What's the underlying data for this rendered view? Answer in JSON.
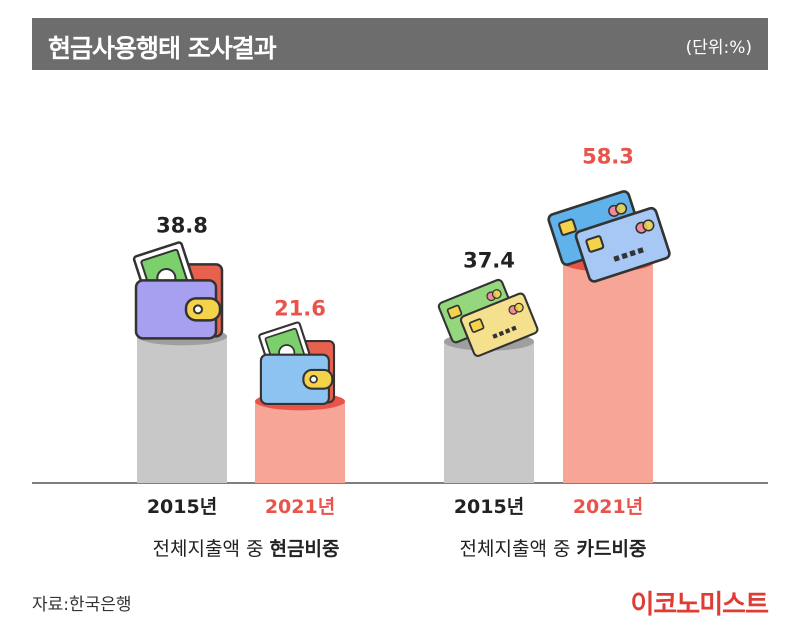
{
  "header": {
    "title": "현금사용행태 조사결과",
    "unit": "(단위:%)"
  },
  "chart_data": {
    "type": "bar",
    "groups": [
      {
        "label_prefix": "전체지출액 중 ",
        "label_bold": "현금비중",
        "categories": [
          "2015년",
          "2021년"
        ],
        "values": [
          38.8,
          21.6
        ],
        "value_labels": [
          "38.8",
          "21.6"
        ],
        "icon": "wallet-icon"
      },
      {
        "label_prefix": "전체지출액 중 ",
        "label_bold": "카드비중",
        "categories": [
          "2015년",
          "2021년"
        ],
        "values": [
          37.4,
          58.3
        ],
        "value_labels": [
          "37.4",
          "58.3"
        ],
        "icon": "credit-card-icon"
      }
    ],
    "colors": {
      "y2015": "#c8c8c8",
      "y2015_top": "#9f9f9f",
      "y2021": "#f6a597",
      "y2021_top": "#ea5448",
      "label_2015": "#222222",
      "label_2021": "#e8544c"
    },
    "ylim": [
      0,
      70
    ],
    "grid": false
  },
  "footer": {
    "source": "자료:한국은행",
    "brand": "이코노미스트"
  }
}
